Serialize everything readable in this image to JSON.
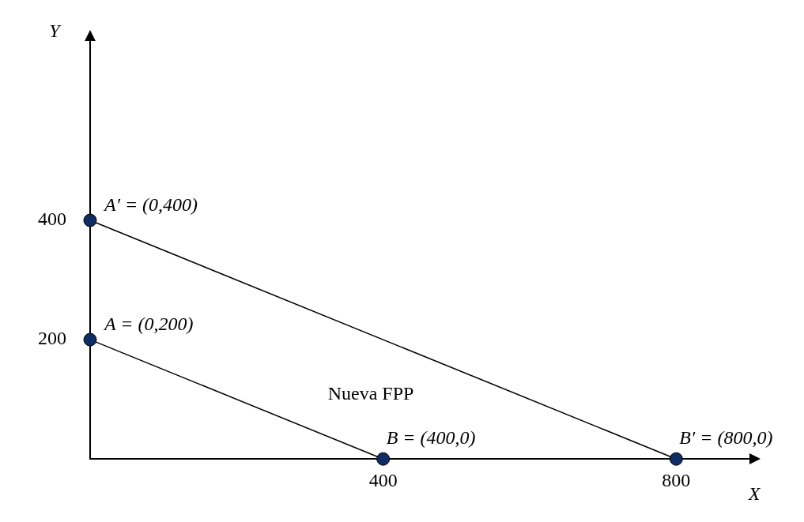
{
  "chart_data": {
    "type": "line",
    "xlabel": "X",
    "ylabel": "Y",
    "xlim": [
      0,
      900
    ],
    "ylim": [
      0,
      700
    ],
    "xticks": [
      400,
      800
    ],
    "yticks": [
      200,
      400
    ],
    "grid": false,
    "marker": "circle",
    "line_style": "solid",
    "tick_labels": true,
    "series": [
      {
        "color": "#000000",
        "x": [
          0,
          400
        ],
        "values": [
          200,
          0
        ]
      },
      {
        "color": "#000000",
        "x": [
          0,
          800
        ],
        "values": [
          400,
          0
        ]
      }
    ],
    "annotations": [
      {
        "text": "A = (0,200)",
        "x": 0,
        "y": 200
      },
      {
        "text": "A′ = (0,400)",
        "x": 0,
        "y": 400
      },
      {
        "text": "B = (400,0)",
        "x": 400,
        "y": 0
      },
      {
        "text": "B′ = (800,0)",
        "x": 800,
        "y": 0
      },
      {
        "text": "Nueva FPP",
        "x": 400,
        "y": 200
      }
    ]
  }
}
